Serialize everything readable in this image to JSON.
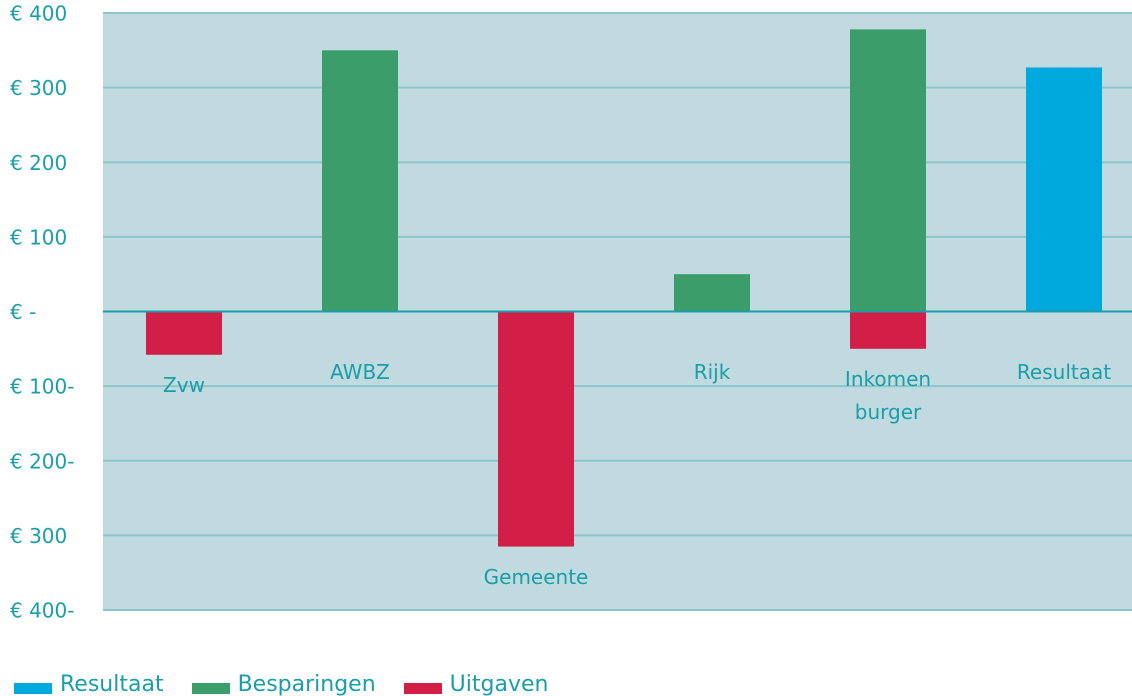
{
  "chart_data": {
    "type": "bar",
    "categories": [
      "Zvw",
      "AWBZ",
      "Gemeente",
      "Rijk",
      "Inkomen burger",
      "Resultaat"
    ],
    "series": [
      {
        "name": "Resultaat",
        "color": "#00a9dd",
        "values": [
          null,
          null,
          null,
          null,
          null,
          327
        ]
      },
      {
        "name": "Besparingen",
        "color": "#3a9d6a",
        "values": [
          null,
          350,
          null,
          50,
          378,
          null
        ]
      },
      {
        "name": "Uitgaven",
        "color": "#d31f48",
        "values": [
          -58,
          null,
          -315,
          null,
          -50,
          null
        ]
      }
    ],
    "ylim": [
      -400,
      400
    ],
    "yticks": [
      {
        "value": 400,
        "label": "€ 400"
      },
      {
        "value": 300,
        "label": "€ 300"
      },
      {
        "value": 200,
        "label": "€ 200"
      },
      {
        "value": 100,
        "label": "€ 100"
      },
      {
        "value": 0,
        "label": "€ -"
      },
      {
        "value": -100,
        "label": "€ 100-"
      },
      {
        "value": -200,
        "label": "€ 200-"
      },
      {
        "value": -300,
        "label": "€ 300"
      },
      {
        "value": -400,
        "label": "€ 400-"
      }
    ],
    "grid": true
  }
}
